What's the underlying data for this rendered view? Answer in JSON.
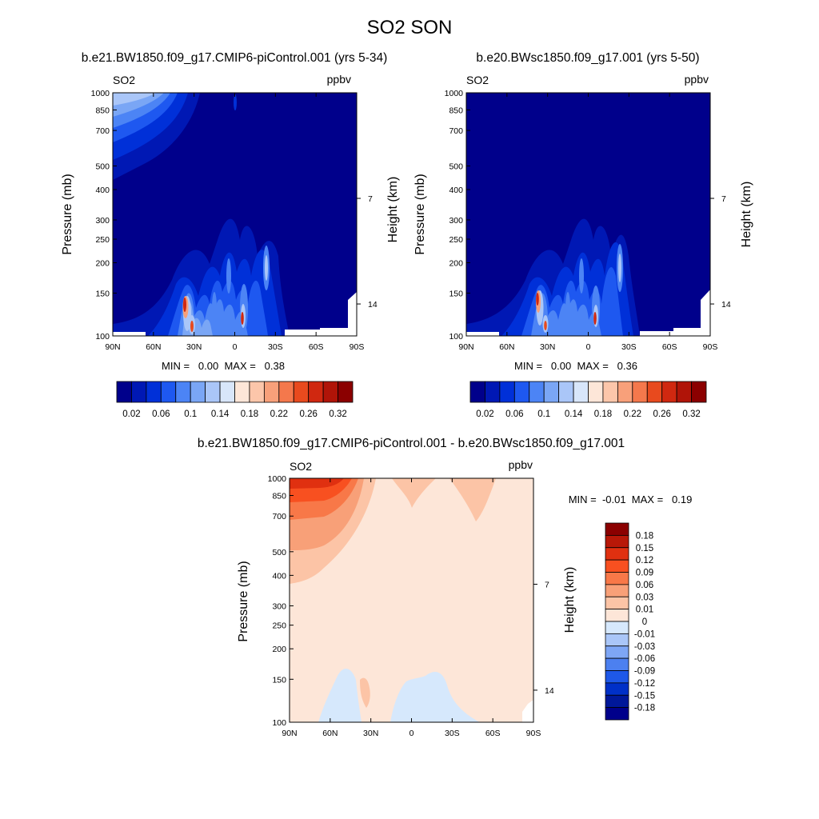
{
  "title": "SO2 SON",
  "chart_data": [
    {
      "type": "contour",
      "title": "b.e21.BW1850.f09_g17.CMIP6-piControl.001 (yrs 5-34)",
      "variable": "SO2",
      "units": "ppbv",
      "ylabel": "Pressure (mb)",
      "ylabel_right": "Height (km)",
      "x_ticks": [
        "90N",
        "60N",
        "30N",
        "0",
        "30S",
        "60S",
        "90S"
      ],
      "y_ticks": [
        "100",
        "150",
        "200",
        "250",
        "300",
        "400",
        "500",
        "700",
        "850",
        "1000"
      ],
      "y_right_ticks": [
        "14",
        "7"
      ],
      "stats": "MIN =   0.00  MAX =   0.38",
      "colorbar_labels": [
        "0.02",
        "0.06",
        "0.1",
        "0.14",
        "0.18",
        "0.22",
        "0.26",
        "0.32"
      ]
    },
    {
      "type": "contour",
      "title": "b.e20.BWsc1850.f09_g17.001 (yrs 5-50)",
      "variable": "SO2",
      "units": "ppbv",
      "ylabel": "Pressure (mb)",
      "ylabel_right": "Height (km)",
      "x_ticks": [
        "90N",
        "60N",
        "30N",
        "0",
        "30S",
        "60S",
        "90S"
      ],
      "y_ticks": [
        "100",
        "150",
        "200",
        "250",
        "300",
        "400",
        "500",
        "700",
        "850",
        "1000"
      ],
      "y_right_ticks": [
        "14",
        "7"
      ],
      "stats": "MIN =   0.00  MAX =   0.36",
      "colorbar_labels": [
        "0.02",
        "0.06",
        "0.1",
        "0.14",
        "0.18",
        "0.22",
        "0.26",
        "0.32"
      ]
    },
    {
      "type": "contour",
      "title": "b.e21.BW1850.f09_g17.CMIP6-piControl.001 - b.e20.BWsc1850.f09_g17.001",
      "variable": "SO2",
      "units": "ppbv",
      "ylabel": "Pressure (mb)",
      "ylabel_right": "Height (km)",
      "x_ticks": [
        "90N",
        "60N",
        "30N",
        "0",
        "30S",
        "60S",
        "90S"
      ],
      "y_ticks": [
        "100",
        "150",
        "200",
        "250",
        "300",
        "400",
        "500",
        "700",
        "850",
        "1000"
      ],
      "y_right_ticks": [
        "14",
        "7"
      ],
      "stats": "MIN =  -0.01  MAX =   0.19",
      "colorbar_labels": [
        "0.18",
        "0.15",
        "0.12",
        "0.09",
        "0.06",
        "0.03",
        "0.01",
        "0",
        "-0.01",
        "-0.03",
        "-0.06",
        "-0.09",
        "-0.12",
        "-0.15",
        "-0.18"
      ]
    }
  ],
  "colors": {
    "abs_levels": [
      "#00008b",
      "#0018b4",
      "#0030d8",
      "#1e58f0",
      "#4c84f5",
      "#7aa6f5",
      "#aac6f8",
      "#d8e6fa",
      "#fde6d8",
      "#fcc6aa",
      "#f8a07a",
      "#f4784c",
      "#e84a1e",
      "#d02810",
      "#b01408",
      "#8b0000"
    ],
    "diff_levels": [
      "#8b0000",
      "#b81808",
      "#e03010",
      "#f85020",
      "#f87848",
      "#f8a078",
      "#fcc4a6",
      "#fde6d8",
      "#d6e8fc",
      "#aac6f8",
      "#7ea6f5",
      "#4c80f0",
      "#1e58e8",
      "#0030c8",
      "#00189a",
      "#00008b"
    ]
  }
}
